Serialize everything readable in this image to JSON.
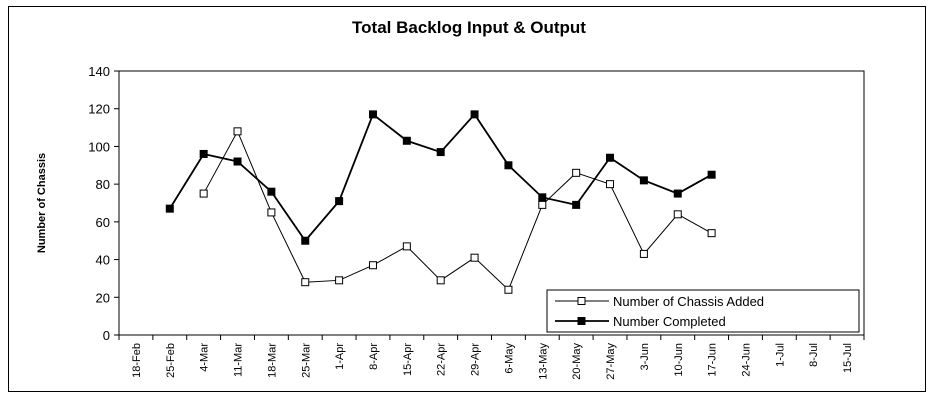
{
  "chart_data": {
    "type": "line",
    "title": "Total Backlog Input & Output",
    "ylabel": "Number of Chassis",
    "xlabel": "",
    "ylim": [
      0,
      140
    ],
    "yticks": [
      0,
      20,
      40,
      60,
      80,
      100,
      120,
      140
    ],
    "categories": [
      "18-Feb",
      "25-Feb",
      "4-Mar",
      "11-Mar",
      "18-Mar",
      "25-Mar",
      "1-Apr",
      "8-Apr",
      "15-Apr",
      "22-Apr",
      "29-Apr",
      "6-May",
      "13-May",
      "20-May",
      "27-May",
      "3-Jun",
      "10-Jun",
      "17-Jun",
      "24-Jun",
      "1-Jul",
      "8-Jul",
      "15-Jul"
    ],
    "grid": false,
    "legend_position": "bottom-right",
    "series": [
      {
        "name": "Number of Chassis Added",
        "marker": "open-square",
        "values": [
          null,
          null,
          75,
          108,
          65,
          28,
          29,
          37,
          47,
          29,
          41,
          24,
          69,
          86,
          80,
          43,
          64,
          54,
          null,
          null,
          null,
          null
        ]
      },
      {
        "name": "Number Completed",
        "marker": "filled-square",
        "values": [
          null,
          67,
          96,
          92,
          76,
          50,
          71,
          117,
          103,
          97,
          117,
          90,
          73,
          69,
          94,
          82,
          75,
          85,
          null,
          null,
          null,
          null
        ]
      }
    ]
  }
}
